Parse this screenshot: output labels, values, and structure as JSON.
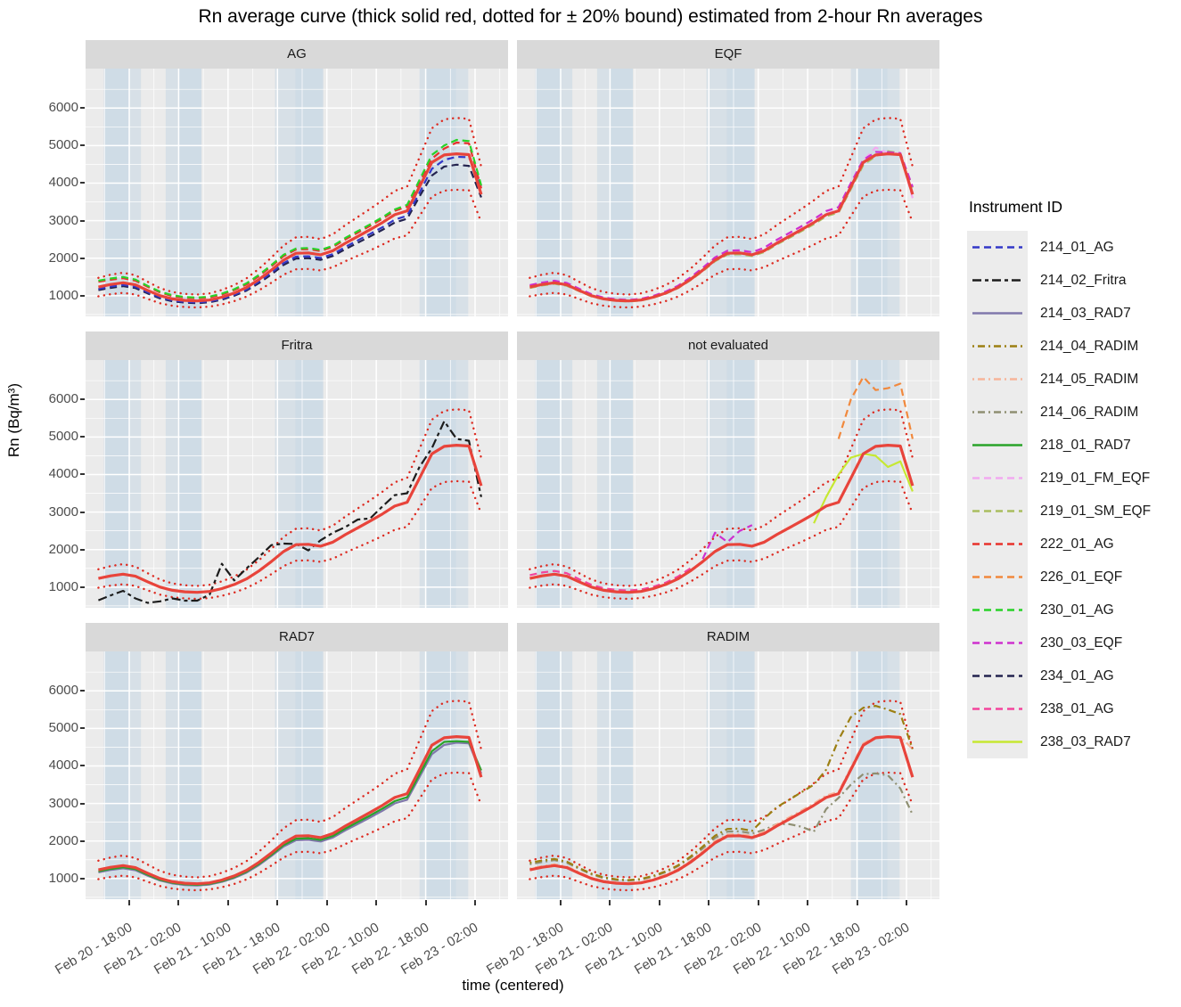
{
  "title": "Rn average curve (thick solid red, dotted for ± 20% bound) estimated from 2-hour Rn averages",
  "legend": {
    "title": "Instrument ID",
    "items": [
      {
        "id": "214_01_AG",
        "color": "#3338c8",
        "dash": "dashed"
      },
      {
        "id": "214_02_Fritra",
        "color": "#1c1c1c",
        "dash": "twodash"
      },
      {
        "id": "214_03_RAD7",
        "color": "#8078ab",
        "dash": "solid"
      },
      {
        "id": "214_04_RADIM",
        "color": "#9c7f12",
        "dash": "dotdash"
      },
      {
        "id": "214_05_RADIM",
        "color": "#f7b49a",
        "dash": "dotdash"
      },
      {
        "id": "214_06_RADIM",
        "color": "#8f8f72",
        "dash": "dotdash"
      },
      {
        "id": "218_01_RAD7",
        "color": "#2aa32a",
        "dash": "solid"
      },
      {
        "id": "219_01_FM_EQF",
        "color": "#f2aaf0",
        "dash": "dashed"
      },
      {
        "id": "219_01_SM_EQF",
        "color": "#a9bd5f",
        "dash": "dashed"
      },
      {
        "id": "222_01_AG",
        "color": "#e8312b",
        "dash": "dashed"
      },
      {
        "id": "226_01_EQF",
        "color": "#f1883c",
        "dash": "dashed"
      },
      {
        "id": "230_01_AG",
        "color": "#28d228",
        "dash": "dashed"
      },
      {
        "id": "230_03_EQF",
        "color": "#ce30ce",
        "dash": "dashed"
      },
      {
        "id": "234_01_AG",
        "color": "#23234f",
        "dash": "dashed"
      },
      {
        "id": "238_01_AG",
        "color": "#f3449c",
        "dash": "dashed"
      },
      {
        "id": "238_03_RAD7",
        "color": "#c6e832",
        "dash": "solid"
      }
    ]
  },
  "chart_data": {
    "type": "line",
    "title": "Rn average curve (thick solid red, dotted for ± 20% bound) estimated from 2-hour Rn averages",
    "xlabel": "time (centered)",
    "ylabel": "Rn (Bq/m³)",
    "x_unit": "hours since Feb 20 12:00",
    "x": [
      1,
      3,
      5,
      7,
      9,
      11,
      13,
      15,
      17,
      19,
      21,
      23,
      25,
      27,
      29,
      31,
      33,
      35,
      37,
      39,
      41,
      43,
      45,
      47,
      49,
      51,
      53,
      55,
      57,
      59,
      61,
      63
    ],
    "x_ticks": [
      {
        "t": 6,
        "label": "Feb 20 - 18:00"
      },
      {
        "t": 14,
        "label": "Feb 21 - 02:00"
      },
      {
        "t": 22,
        "label": "Feb 21 - 10:00"
      },
      {
        "t": 30,
        "label": "Feb 21 - 18:00"
      },
      {
        "t": 38,
        "label": "Feb 22 - 02:00"
      },
      {
        "t": 46,
        "label": "Feb 22 - 10:00"
      },
      {
        "t": 54,
        "label": "Feb 22 - 18:00"
      },
      {
        "t": 62,
        "label": "Feb 23 - 02:00"
      }
    ],
    "yticks": [
      1000,
      2000,
      3000,
      4000,
      5000,
      6000
    ],
    "ylim": [
      450,
      7050
    ],
    "grid": true,
    "legend_position": "right",
    "shaded_bands_t": [
      {
        "t0": 1.9,
        "t1": 7.9,
        "core0": 1.9,
        "core1": 6.0
      },
      {
        "t0": 11.9,
        "t1": 17.7,
        "core0": 14.1,
        "core1": 17.7
      },
      {
        "t0": 29.6,
        "t1": 37.4,
        "core0": 32.9,
        "core1": 37.4
      },
      {
        "t0": 53.0,
        "t1": 60.9,
        "core0": 54.1,
        "core1": 58.9
      }
    ],
    "average": {
      "name": "Rn average",
      "color": "#e8443b",
      "bound_color": "#dd2a20",
      "bound_pct": 20,
      "values": [
        1230,
        1300,
        1345,
        1290,
        1140,
        1000,
        915,
        875,
        860,
        885,
        960,
        1070,
        1220,
        1430,
        1680,
        1950,
        2130,
        2140,
        2090,
        2200,
        2400,
        2580,
        2760,
        2950,
        3160,
        3260,
        3900,
        4550,
        4750,
        4780,
        4760,
        3700
      ]
    },
    "facets": [
      {
        "label": "AG",
        "series": [
          {
            "id": "234_01_AG",
            "values": [
              1150,
              1210,
              1255,
              1205,
              1060,
              930,
              852,
              815,
              800,
              825,
              895,
              1000,
              1135,
              1335,
              1565,
              1820,
              1990,
              2000,
              1955,
              2060,
              2240,
              2410,
              2580,
              2755,
              2950,
              3050,
              3640,
              4200,
              4440,
              4490,
              4460,
              3620
            ]
          },
          {
            "id": "214_01_AG",
            "values": [
              1180,
              1245,
              1290,
              1240,
              1090,
              955,
              875,
              835,
              822,
              847,
              918,
              1025,
              1165,
              1370,
              1610,
              1870,
              2040,
              2050,
              2005,
              2110,
              2300,
              2475,
              2645,
              2825,
              3025,
              3130,
              3740,
              4380,
              4620,
              4700,
              4690,
              3910
            ]
          },
          {
            "id": "222_01_AG",
            "values": [
              1370,
              1425,
              1465,
              1400,
              1235,
              1085,
              990,
              945,
              930,
              955,
              1030,
              1150,
              1300,
              1520,
              1780,
              2055,
              2230,
              2240,
              2190,
              2300,
              2500,
              2680,
              2860,
              3050,
              3260,
              3370,
              4020,
              4650,
              4920,
              5080,
              5060,
              3860
            ]
          },
          {
            "id": "230_01_AG",
            "values": [
              1400,
              1460,
              1500,
              1430,
              1260,
              1110,
              1010,
              965,
              950,
              975,
              1055,
              1175,
              1330,
              1555,
              1815,
              2090,
              2260,
              2270,
              2220,
              2330,
              2540,
              2720,
              2900,
              3090,
              3300,
              3420,
              4080,
              4750,
              5000,
              5150,
              5120,
              3940
            ]
          }
        ]
      },
      {
        "label": "EQF",
        "series": [
          {
            "id": "219_01_SM_EQF",
            "values": [
              1205,
              1275,
              1320,
              1265,
              1120,
              982,
              900,
              858,
              845,
              870,
              945,
              1052,
              1200,
              1408,
              1652,
              1918,
              2095,
              2105,
              2058,
              2165,
              2365,
              2540,
              2720,
              2905,
              3115,
              3215,
              3840,
              4480,
              4720,
              4850,
              4800,
              3880
            ]
          },
          {
            "id": "219_01_FM_EQF",
            "values": [
              1255,
              1320,
              1365,
              1310,
              1155,
              1012,
              925,
              885,
              870,
              895,
              970,
              1080,
              1235,
              1450,
              1700,
              1975,
              2155,
              2165,
              2115,
              2225,
              2425,
              2605,
              2785,
              2975,
              3185,
              3290,
              3940,
              4600,
              4950,
              4800,
              4790,
              3600
            ]
          },
          {
            "id": "230_03_EQF",
            "values": [
              1280,
              1350,
              1400,
              1340,
              1185,
              1040,
              950,
              905,
              890,
              915,
              995,
              1110,
              1265,
              1485,
              1745,
              2020,
              2200,
              2210,
              2160,
              2280,
              2490,
              2670,
              2850,
              3040,
              3255,
              3360,
              4000,
              4620,
              4830,
              4820,
              4800,
              3900
            ]
          }
        ]
      },
      {
        "label": "Fritra",
        "series": [
          {
            "id": "214_02_Fritra",
            "values": [
              650,
              780,
              900,
              700,
              580,
              620,
              700,
              640,
              640,
              800,
              1620,
              1180,
              1500,
              1800,
              2120,
              2160,
              2150,
              1980,
              2250,
              2450,
              2600,
              2800,
              2830,
              3150,
              3450,
              3500,
              4200,
              4700,
              5420,
              4950,
              4900,
              3400
            ]
          }
        ]
      },
      {
        "label": "not evaluated",
        "series": [
          {
            "id": "238_01_AG",
            "values": [
              1320,
              1390,
              1430,
              1370,
              1210,
              1060,
              970,
              925,
              910,
              935,
              1010,
              1120,
              1280,
              1500,
              null,
              null,
              null,
              null,
              null,
              null,
              null,
              null,
              null,
              null,
              null,
              null,
              null,
              null,
              null,
              null,
              null,
              null
            ]
          },
          {
            "id": "230_03_EQF",
            "values": [
              null,
              null,
              null,
              null,
              null,
              null,
              null,
              null,
              null,
              null,
              null,
              null,
              null,
              null,
              1750,
              2450,
              2200,
              2500,
              2650,
              null,
              null,
              null,
              null,
              null,
              null,
              null,
              null,
              null,
              null,
              null,
              null,
              null
            ]
          },
          {
            "id": "226_01_EQF",
            "values": [
              null,
              null,
              null,
              null,
              null,
              null,
              null,
              null,
              null,
              null,
              null,
              null,
              null,
              null,
              null,
              null,
              null,
              null,
              null,
              null,
              null,
              null,
              null,
              null,
              null,
              4950,
              6000,
              6600,
              6250,
              6300,
              6420,
              4950
            ]
          },
          {
            "id": "238_03_RAD7",
            "values": [
              null,
              null,
              null,
              null,
              null,
              null,
              null,
              null,
              null,
              null,
              null,
              null,
              null,
              null,
              null,
              null,
              null,
              null,
              null,
              null,
              null,
              null,
              null,
              2700,
              3400,
              4000,
              4450,
              4550,
              4500,
              4200,
              4350,
              3550
            ]
          }
        ]
      },
      {
        "label": "RAD7",
        "series": [
          {
            "id": "214_03_RAD7",
            "values": [
              1165,
              1228,
              1272,
              1222,
              1075,
              945,
              868,
              828,
              815,
              840,
              910,
              1015,
              1158,
              1358,
              1598,
              1852,
              2020,
              2032,
              1985,
              2092,
              2282,
              2452,
              2625,
              2805,
              3002,
              3100,
              3700,
              4310,
              4560,
              4620,
              4600,
              3800
            ]
          },
          {
            "id": "218_01_RAD7",
            "values": [
              1192,
              1256,
              1300,
              1250,
              1100,
              966,
              886,
              846,
              832,
              858,
              930,
              1037,
              1183,
              1388,
              1632,
              1892,
              2062,
              2075,
              2028,
              2135,
              2330,
              2505,
              2680,
              2865,
              3065,
              3165,
              3770,
              4390,
              4640,
              4660,
              4640,
              3880
            ]
          }
        ]
      },
      {
        "label": "RADIM",
        "series": [
          {
            "id": "214_06_RADIM",
            "values": [
              1380,
              1440,
              1490,
              1420,
              1260,
              1110,
              1010,
              960,
              945,
              975,
              1050,
              1170,
              1330,
              1550,
              1800,
              2080,
              2250,
              2260,
              2200,
              2300,
              2450,
              2450,
              2380,
              2250,
              2850,
              3150,
              3500,
              3780,
              3800,
              3750,
              3400,
              2700
            ]
          },
          {
            "id": "214_05_RADIM",
            "values": [
              1262,
              1330,
              1378,
              1322,
              1168,
              1025,
              938,
              897,
              882,
              908,
              984,
              1097,
              1250,
              1465,
              1720,
              1995,
              2175,
              2185,
              2135,
              2245,
              2450,
              2630,
              2810,
              3000,
              3210,
              3310,
              3950,
              4600,
              4770,
              4790,
              4780,
              4450
            ]
          },
          {
            "id": "214_04_RADIM",
            "values": [
              1420,
              1480,
              1520,
              1450,
              1280,
              1130,
              1030,
              980,
              960,
              990,
              1070,
              1190,
              1350,
              1580,
              1850,
              2140,
              2320,
              2330,
              2270,
              2600,
              2900,
              3100,
              3300,
              3500,
              3900,
              4700,
              5300,
              5550,
              5600,
              5500,
              5380,
              4450
            ]
          }
        ]
      }
    ]
  },
  "style": {
    "panel_bg": "#ebebeb",
    "strip_bg": "#d9d9d9",
    "band_color": "#b7cfe2",
    "grid_major": "#ffffff",
    "tick_label_color": "#4d4d4d"
  }
}
